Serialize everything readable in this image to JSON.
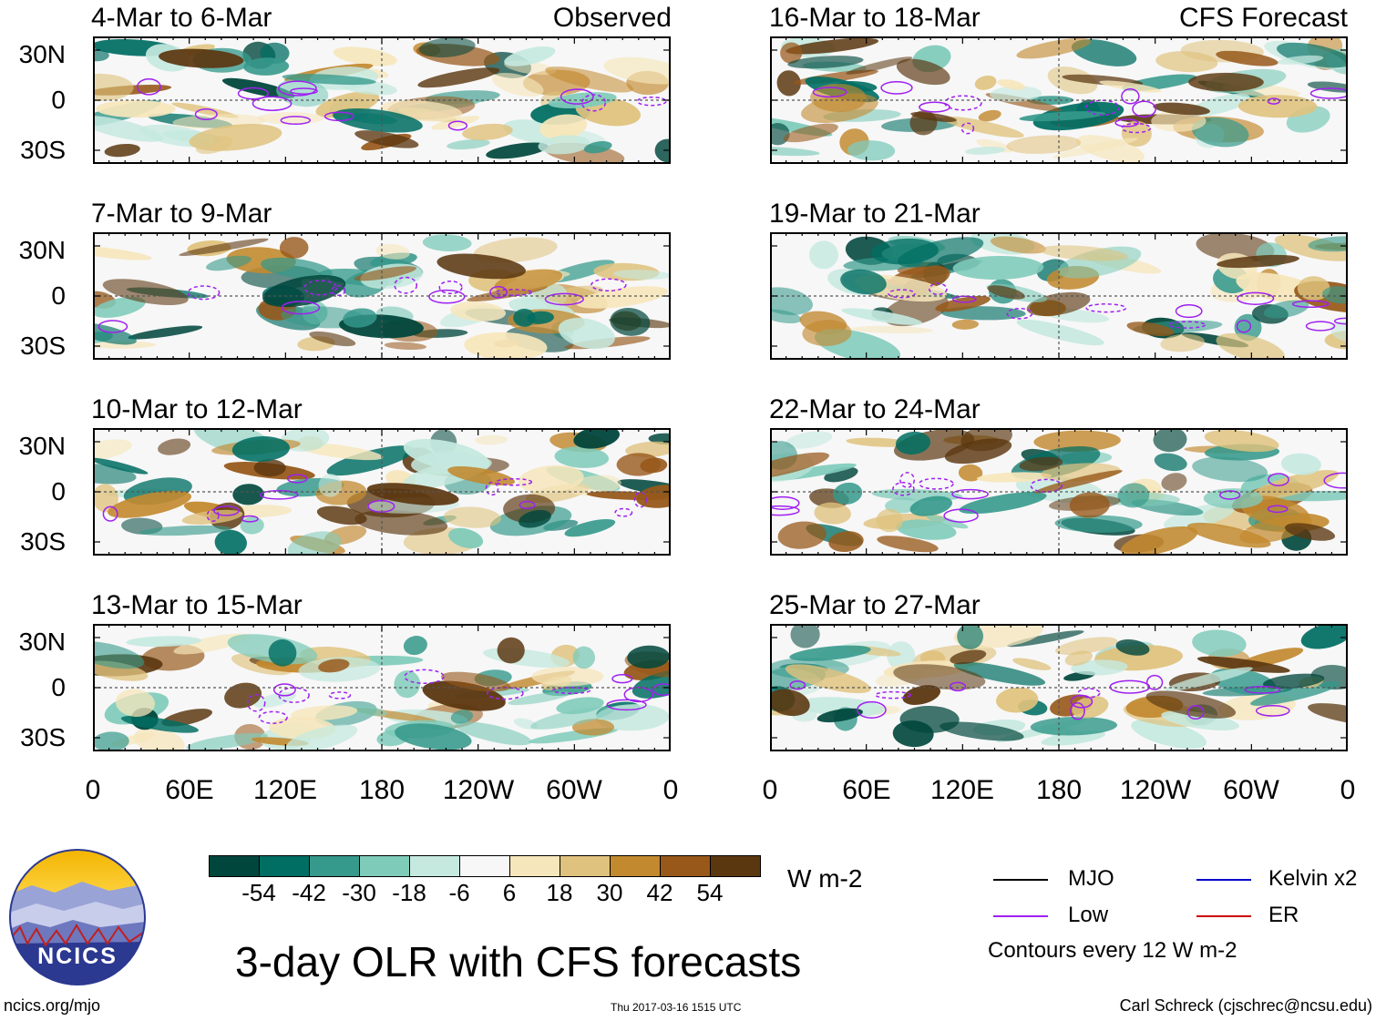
{
  "panels_left": [
    {
      "title": "4-Mar to 6-Mar",
      "label": "Observed"
    },
    {
      "title": "7-Mar to 9-Mar",
      "label": ""
    },
    {
      "title": "10-Mar to 12-Mar",
      "label": ""
    },
    {
      "title": "13-Mar to 15-Mar",
      "label": ""
    }
  ],
  "panels_right": [
    {
      "title": "16-Mar to 18-Mar",
      "label": "CFS Forecast"
    },
    {
      "title": "19-Mar to 21-Mar",
      "label": ""
    },
    {
      "title": "22-Mar to 24-Mar",
      "label": ""
    },
    {
      "title": "25-Mar to 27-Mar",
      "label": ""
    }
  ],
  "lat_labels": [
    "30N",
    "0",
    "30S"
  ],
  "lon_labels": [
    "0",
    "60E",
    "120E",
    "180",
    "120W",
    "60W",
    "0"
  ],
  "colorbar": {
    "ticks": [
      "-54",
      "-42",
      "-30",
      "-18",
      "-6",
      "6",
      "18",
      "30",
      "42",
      "54"
    ],
    "colors": [
      "#00463c",
      "#006e63",
      "#35998b",
      "#7fcbba",
      "#c5e9df",
      "#f7f7f7",
      "#f6e6bb",
      "#dfc27d",
      "#c2892f",
      "#97581a",
      "#5b3710"
    ],
    "units": "W m-2"
  },
  "legend": {
    "items": [
      {
        "label": "MJO",
        "color": "#000000"
      },
      {
        "label": "Kelvin x2",
        "color": "#0000cc"
      },
      {
        "label": "Low",
        "color": "#a020f0"
      },
      {
        "label": "ER",
        "color": "#cc0000"
      }
    ],
    "note": "Contours every 12 W m-2"
  },
  "main_title": "3-day OLR with CFS forecasts",
  "logo_text": "NCICS",
  "footer": {
    "url": "ncics.org/mjo",
    "timestamp": "Thu 2017-03-16 1515 UTC",
    "credit": "Carl Schreck (cjschrec@ncsu.edu)"
  }
}
